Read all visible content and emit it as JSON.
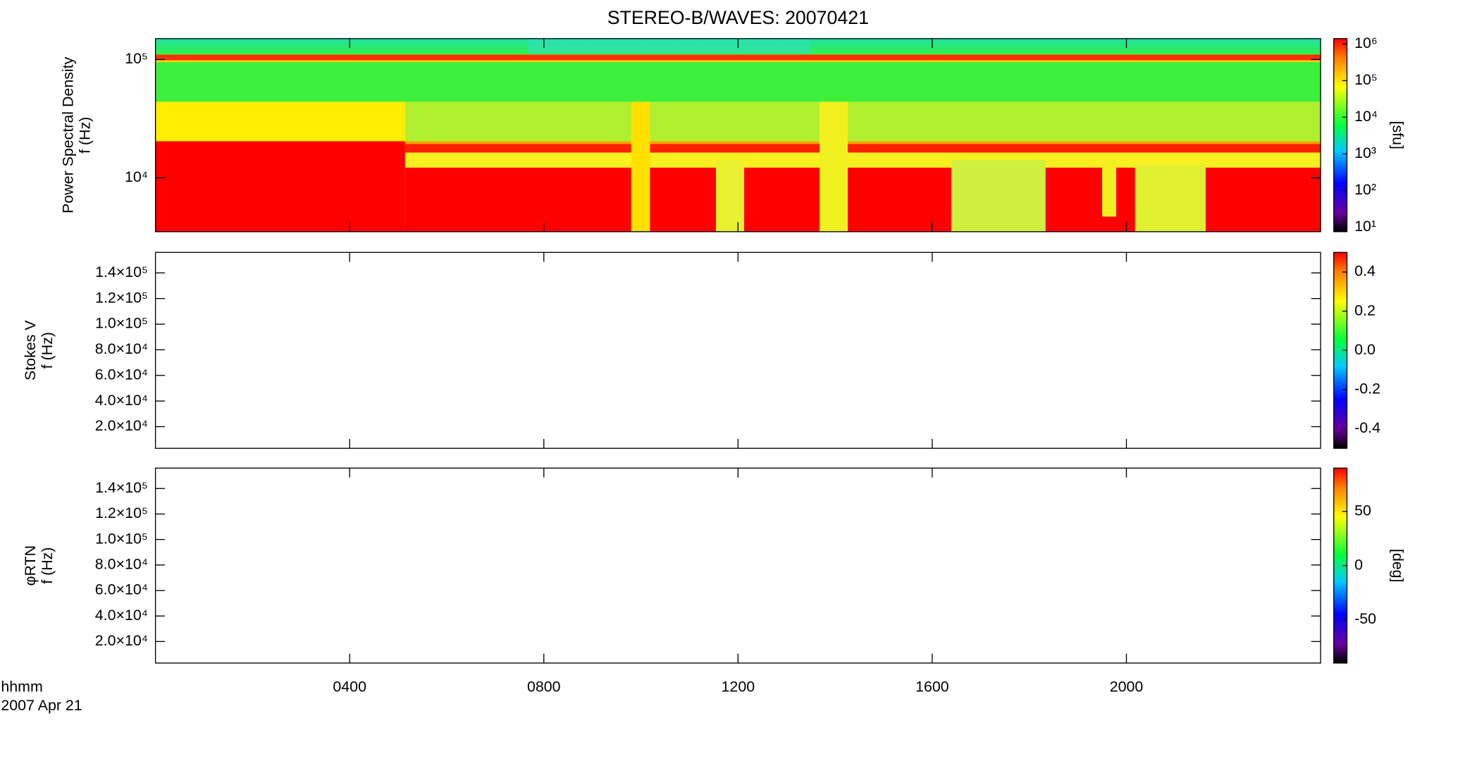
{
  "chart_data": [
    {
      "type": "spectrogram",
      "title": "STEREO-B/WAVES: 20070421",
      "ylabel": [
        "Power Spectral Density",
        "f (Hz)"
      ],
      "ylog": true,
      "ylim": [
        3500,
        150000
      ],
      "yticks": [
        {
          "value": 10000,
          "label": "10⁴"
        },
        {
          "value": 100000,
          "label": "10⁵"
        }
      ],
      "xlim": [
        0,
        24
      ],
      "xticks": [
        4,
        8,
        12,
        16,
        20
      ],
      "colorbar": {
        "log": true,
        "lim": [
          7.5,
          1400000
        ],
        "ticks": [
          {
            "value": 10,
            "label": "10¹"
          },
          {
            "value": 100,
            "label": "10²"
          },
          {
            "value": 1000,
            "label": "10³"
          },
          {
            "value": 10000,
            "label": "10⁴"
          },
          {
            "value": 100000,
            "label": "10⁵"
          },
          {
            "value": 1000000,
            "label": "10⁶"
          }
        ],
        "label": "[sfu]"
      }
    },
    {
      "type": "spectrogram",
      "ylabel": [
        "Stokes V",
        "f (Hz)"
      ],
      "ylog": false,
      "ylim": [
        3100,
        156000
      ],
      "yticks": [
        {
          "value": 20000,
          "label": "2.0×10⁴"
        },
        {
          "value": 40000,
          "label": "4.0×10⁴"
        },
        {
          "value": 60000,
          "label": "6.0×10⁴"
        },
        {
          "value": 80000,
          "label": "8.0×10⁴"
        },
        {
          "value": 100000,
          "label": "1.0×10⁵"
        },
        {
          "value": 120000,
          "label": "1.2×10⁵"
        },
        {
          "value": 140000,
          "label": "1.4×10⁵"
        }
      ],
      "xlim": [
        0,
        24
      ],
      "xticks": [
        4,
        8,
        12,
        16,
        20
      ],
      "colorbar": {
        "log": false,
        "lim": [
          -0.5,
          0.5
        ],
        "ticks": [
          -0.4,
          -0.2,
          {
            "value": 0,
            "label": "0.0"
          },
          0.2,
          0.4
        ]
      }
    },
    {
      "type": "spectrogram",
      "ylabel": [
        "φRTN",
        "f (Hz)"
      ],
      "ylog": false,
      "ylim": [
        3100,
        156000
      ],
      "yticks": [
        {
          "value": 20000,
          "label": "2.0×10⁴"
        },
        {
          "value": 40000,
          "label": "4.0×10⁴"
        },
        {
          "value": 60000,
          "label": "6.0×10⁴"
        },
        {
          "value": 80000,
          "label": "8.0×10⁴"
        },
        {
          "value": 100000,
          "label": "1.0×10⁵"
        },
        {
          "value": 120000,
          "label": "1.2×10⁵"
        },
        {
          "value": 140000,
          "label": "1.4×10⁵"
        }
      ],
      "xlim": [
        0,
        24
      ],
      "xticks": [
        {
          "value": 4,
          "label": "0400"
        },
        {
          "value": 8,
          "label": "0800"
        },
        {
          "value": 12,
          "label": "1200"
        },
        {
          "value": 16,
          "label": "1600"
        },
        {
          "value": 20,
          "label": "2000"
        }
      ],
      "xlabel": [
        "hhmm",
        "2007 Apr 21"
      ],
      "colorbar": {
        "log": false,
        "lim": [
          -90,
          90
        ],
        "ticks": [
          -50,
          0,
          50
        ],
        "label": "[deg]"
      }
    }
  ]
}
